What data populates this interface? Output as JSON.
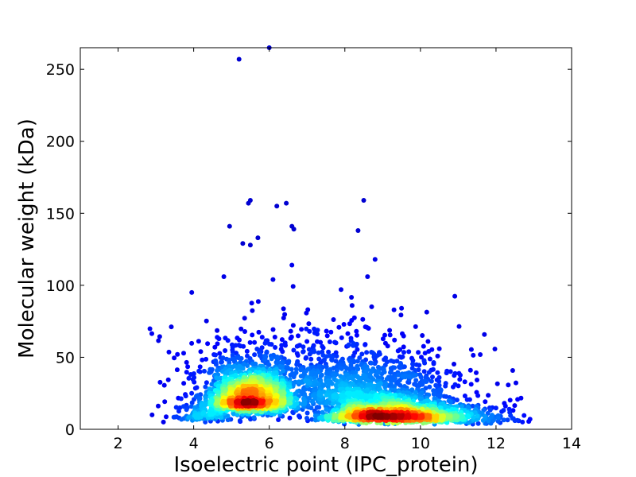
{
  "chart_data": {
    "type": "scatter",
    "title": "",
    "xlabel": "Isoelectric point (IPC_protein)",
    "ylabel": "Molecular weight (kDa)",
    "xlim": [
      1,
      14
    ],
    "ylim": [
      0,
      265
    ],
    "xticks": [
      2,
      4,
      6,
      8,
      10,
      12,
      14
    ],
    "yticks": [
      0,
      50,
      100,
      150,
      200,
      250
    ],
    "grid": false,
    "colormap": "jet (point density)",
    "colors": {
      "low_density": "#00008f",
      "mid_density": "#00ffff",
      "high_density": "#ff0000",
      "max_density": "#800000"
    },
    "clusters": [
      {
        "center": [
          5.5,
          20
        ],
        "spread": [
          0.55,
          12
        ],
        "count": 1500
      },
      {
        "center": [
          9.1,
          9
        ],
        "spread": [
          0.85,
          5
        ],
        "count": 1400
      },
      {
        "center": [
          8.5,
          25
        ],
        "spread": [
          1.3,
          14
        ],
        "count": 700
      },
      {
        "center": [
          7.0,
          35
        ],
        "spread": [
          1.9,
          22
        ],
        "count": 500
      },
      {
        "center": [
          11.0,
          8
        ],
        "spread": [
          0.8,
          6
        ],
        "count": 250
      },
      {
        "center": [
          4.3,
          10
        ],
        "spread": [
          0.45,
          6
        ],
        "count": 150
      }
    ],
    "notable_points": [
      {
        "x": 5.2,
        "y": 257
      },
      {
        "x": 6.0,
        "y": 265
      },
      {
        "x": 5.5,
        "y": 159
      },
      {
        "x": 5.45,
        "y": 157
      },
      {
        "x": 6.45,
        "y": 157
      },
      {
        "x": 6.2,
        "y": 155
      },
      {
        "x": 8.5,
        "y": 159
      },
      {
        "x": 4.95,
        "y": 141
      },
      {
        "x": 6.6,
        "y": 141
      },
      {
        "x": 6.65,
        "y": 139
      },
      {
        "x": 8.35,
        "y": 138
      },
      {
        "x": 5.7,
        "y": 133
      },
      {
        "x": 5.3,
        "y": 129
      },
      {
        "x": 5.5,
        "y": 128
      },
      {
        "x": 8.8,
        "y": 118
      },
      {
        "x": 6.6,
        "y": 114
      },
      {
        "x": 3.95,
        "y": 95
      },
      {
        "x": 2.9,
        "y": 10
      },
      {
        "x": 3.2,
        "y": 5
      },
      {
        "x": 12.9,
        "y": 7
      },
      {
        "x": 12.7,
        "y": 5
      },
      {
        "x": 12.5,
        "y": 6
      },
      {
        "x": 10.5,
        "y": 56
      },
      {
        "x": 10.2,
        "y": 61
      },
      {
        "x": 9.5,
        "y": 84
      },
      {
        "x": 9.3,
        "y": 83
      },
      {
        "x": 8.6,
        "y": 106
      },
      {
        "x": 7.9,
        "y": 97
      },
      {
        "x": 4.8,
        "y": 106
      },
      {
        "x": 6.1,
        "y": 104
      }
    ]
  }
}
